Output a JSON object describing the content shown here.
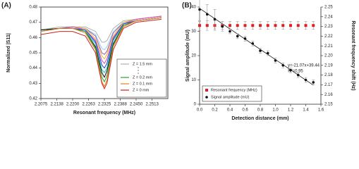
{
  "chart_data": [
    {
      "type": "line",
      "panel_label": "(A)",
      "x_label": "Resonant frequency (MHz)",
      "y_label": "Normalized |S11|",
      "x": [
        2.2075,
        2.215,
        2.22,
        2.225,
        2.229,
        2.2315,
        2.2325,
        2.2335,
        2.236,
        2.24,
        2.245,
        2.255
      ],
      "xlim": [
        2.2075,
        2.2575
      ],
      "xticks": [
        2.2075,
        2.2138,
        {
          "value": 2.22,
          "label": "2.2200"
        },
        2.2263,
        2.2325,
        2.2388,
        {
          "value": 2.245,
          "label": "2.2450"
        },
        2.2513
      ],
      "ylim": [
        0.42,
        0.48
      ],
      "yticks": [
        0.42,
        0.43,
        0.44,
        0.45,
        0.46,
        0.47,
        0.48
      ],
      "series": [
        {
          "name": "Z = 1.5 mm",
          "color": "#b0b0b0",
          "values": [
            0.465,
            0.467,
            0.467,
            0.467,
            0.464,
            0.457,
            0.457,
            0.458,
            0.466,
            0.471,
            0.472,
            0.474
          ]
        },
        {
          "color": "#8fd3f0",
          "values": [
            0.465,
            0.466,
            0.467,
            0.466,
            0.462,
            0.453,
            0.452,
            0.454,
            0.464,
            0.47,
            0.472,
            0.474
          ]
        },
        {
          "color": "#9b59b6",
          "values": [
            0.465,
            0.466,
            0.467,
            0.466,
            0.461,
            0.45,
            0.449,
            0.451,
            0.463,
            0.47,
            0.472,
            0.474
          ]
        },
        {
          "color": "#e8c020",
          "values": [
            0.465,
            0.466,
            0.467,
            0.466,
            0.459,
            0.448,
            0.446,
            0.449,
            0.461,
            0.47,
            0.472,
            0.474
          ]
        },
        {
          "color": "#e040c0",
          "values": [
            0.465,
            0.466,
            0.467,
            0.465,
            0.458,
            0.445,
            0.443,
            0.446,
            0.46,
            0.469,
            0.472,
            0.474
          ]
        },
        {
          "color": "#2040d0",
          "values": [
            0.465,
            0.466,
            0.466,
            0.465,
            0.457,
            0.442,
            0.44,
            0.443,
            0.459,
            0.469,
            0.471,
            0.473
          ]
        },
        {
          "color": "#20c0c0",
          "values": [
            0.465,
            0.466,
            0.466,
            0.464,
            0.456,
            0.439,
            0.437,
            0.44,
            0.458,
            0.468,
            0.471,
            0.473
          ]
        },
        {
          "color": "#111111",
          "values": [
            0.465,
            0.466,
            0.466,
            0.464,
            0.454,
            0.437,
            0.434,
            0.438,
            0.456,
            0.468,
            0.471,
            0.473
          ]
        },
        {
          "name": "Z = 0.2 mm",
          "color": "#30a030",
          "values": [
            0.464,
            0.466,
            0.466,
            0.464,
            0.453,
            0.434,
            0.431,
            0.435,
            0.455,
            0.468,
            0.471,
            0.473
          ]
        },
        {
          "name": "Z = 0.1 mm",
          "color": "#e08020",
          "values": [
            0.464,
            0.466,
            0.466,
            0.463,
            0.452,
            0.431,
            0.428,
            0.432,
            0.454,
            0.467,
            0.471,
            0.473
          ]
        },
        {
          "name": "Z = 0 mm",
          "color": "#d02020",
          "values": [
            0.462,
            0.464,
            0.464,
            0.461,
            0.45,
            0.43,
            0.4265,
            0.43,
            0.452,
            0.466,
            0.47,
            0.472
          ]
        }
      ]
    },
    {
      "type": "scatter",
      "panel_label": "(B)",
      "x_label": "Detection distance (mm)",
      "y_label": "Signal amplitude (mU)",
      "y2_label": "Resonant frequency shift (Hz)",
      "x": [
        0,
        0.1,
        0.2,
        0.3,
        0.4,
        0.5,
        0.6,
        0.7,
        0.8,
        0.9,
        1,
        1.1,
        1.2,
        1.3,
        1.4,
        1.5
      ],
      "xlim": [
        0,
        1.6
      ],
      "xticks": [
        {
          "value": 0,
          "label": "0.0"
        },
        0.2,
        0.4,
        0.6,
        0.8,
        {
          "value": 1,
          "label": "1.0"
        },
        1.2,
        1.4,
        1.6
      ],
      "ylim": [
        0,
        40
      ],
      "yticks": [
        0,
        10,
        20,
        30,
        40
      ],
      "y2lim": [
        2.15,
        2.25
      ],
      "y2ticks": [
        2.15,
        2.16,
        2.17,
        2.18,
        2.19,
        {
          "value": 2.2,
          "label": "2.20"
        },
        2.21,
        2.22,
        2.23,
        2.24,
        2.25
      ],
      "series": [
        {
          "name": "Resonant frequency (MHz)",
          "color": "#e02020",
          "marker": "square",
          "axis": "y2",
          "values": [
            2.231,
            2.231,
            2.231,
            2.231,
            2.231,
            2.231,
            2.231,
            2.231,
            2.231,
            2.231,
            2.231,
            2.231,
            2.231,
            2.231,
            2.231,
            2.231
          ],
          "errors": [
            0.005,
            0.005,
            0.005,
            0.004,
            0.004,
            0.004,
            0.004,
            0.004,
            0.004,
            0.004,
            0.004,
            0.004,
            0.004,
            0.004,
            0.004,
            0.004
          ]
        },
        {
          "name": "Signal amplitude (mU)",
          "color": "#111111",
          "marker": "circle",
          "values": [
            39,
            37,
            35,
            32,
            30,
            28,
            27,
            25,
            22,
            21,
            18,
            16,
            14,
            12,
            10,
            9
          ],
          "errors": [
            5,
            4,
            4,
            2,
            1,
            1,
            1,
            1,
            1,
            1,
            1,
            1,
            1,
            1,
            1,
            1
          ]
        }
      ],
      "fit": {
        "slope": -21.07,
        "intercept": 39.44,
        "label": "y=-21.07x+39.44",
        "r2_label": "R²=0.95"
      }
    }
  ]
}
